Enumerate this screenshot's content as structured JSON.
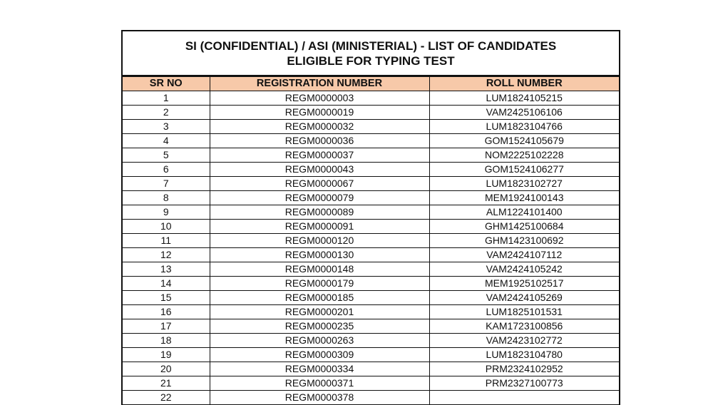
{
  "document": {
    "title_line1": "SI (CONFIDENTIAL) / ASI (MINISTERIAL) - LIST OF CANDIDATES",
    "title_line2": "ELIGIBLE FOR TYPING TEST",
    "header_color": "#f7c9a9",
    "columns": [
      "SR NO",
      "REGISTRATION NUMBER",
      "ROLL NUMBER"
    ],
    "rows": [
      [
        "1",
        "REGM0000003",
        "LUM1824105215"
      ],
      [
        "2",
        "REGM0000019",
        "VAM2425106106"
      ],
      [
        "3",
        "REGM0000032",
        "LUM1823104766"
      ],
      [
        "4",
        "REGM0000036",
        "GOM1524105679"
      ],
      [
        "5",
        "REGM0000037",
        "NOM2225102228"
      ],
      [
        "6",
        "REGM0000043",
        "GOM1524106277"
      ],
      [
        "7",
        "REGM0000067",
        "LUM1823102727"
      ],
      [
        "8",
        "REGM0000079",
        "MEM1924100143"
      ],
      [
        "9",
        "REGM0000089",
        "ALM1224101400"
      ],
      [
        "10",
        "REGM0000091",
        "GHM1425100684"
      ],
      [
        "11",
        "REGM0000120",
        "GHM1423100692"
      ],
      [
        "12",
        "REGM0000130",
        "VAM2424107112"
      ],
      [
        "13",
        "REGM0000148",
        "VAM2424105242"
      ],
      [
        "14",
        "REGM0000179",
        "MEM1925102517"
      ],
      [
        "15",
        "REGM0000185",
        "VAM2424105269"
      ],
      [
        "16",
        "REGM0000201",
        "LUM1825101531"
      ],
      [
        "17",
        "REGM0000235",
        "KAM1723100856"
      ],
      [
        "18",
        "REGM0000263",
        "VAM2423102772"
      ],
      [
        "19",
        "REGM0000309",
        "LUM1823104780"
      ],
      [
        "20",
        "REGM0000334",
        "PRM2324102952"
      ],
      [
        "21",
        "REGM0000371",
        "PRM2327100773"
      ],
      [
        "22",
        "REGM0000378",
        ""
      ]
    ]
  }
}
